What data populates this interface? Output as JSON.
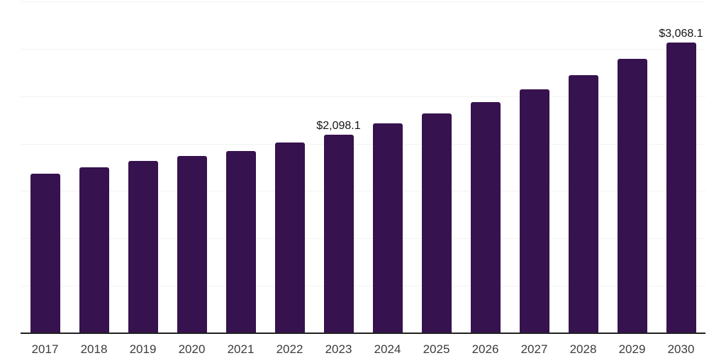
{
  "chart_data": {
    "type": "bar",
    "title": "",
    "xlabel": "",
    "ylabel": "",
    "categories": [
      "2017",
      "2018",
      "2019",
      "2020",
      "2021",
      "2022",
      "2023",
      "2024",
      "2025",
      "2026",
      "2027",
      "2028",
      "2029",
      "2030"
    ],
    "values": [
      1680,
      1748,
      1814,
      1872,
      1922,
      2009,
      2098.1,
      2213,
      2321,
      2440,
      2576,
      2723,
      2893,
      3068.1
    ],
    "data_labels": {
      "2023": "$2,098.1",
      "2030": "$3,068.1"
    },
    "ylim": [
      0,
      3500
    ],
    "gridline_step": 500,
    "grid": "horizontal",
    "legend_position": "none",
    "y_tick_labels_visible": false,
    "colors": {
      "bar": "#36124E",
      "gridline": "#F2F2F2",
      "axis_line": "#222222",
      "tick_label": "#3B3B3B",
      "data_label": "#141414",
      "background": "#FFFFFF"
    }
  }
}
